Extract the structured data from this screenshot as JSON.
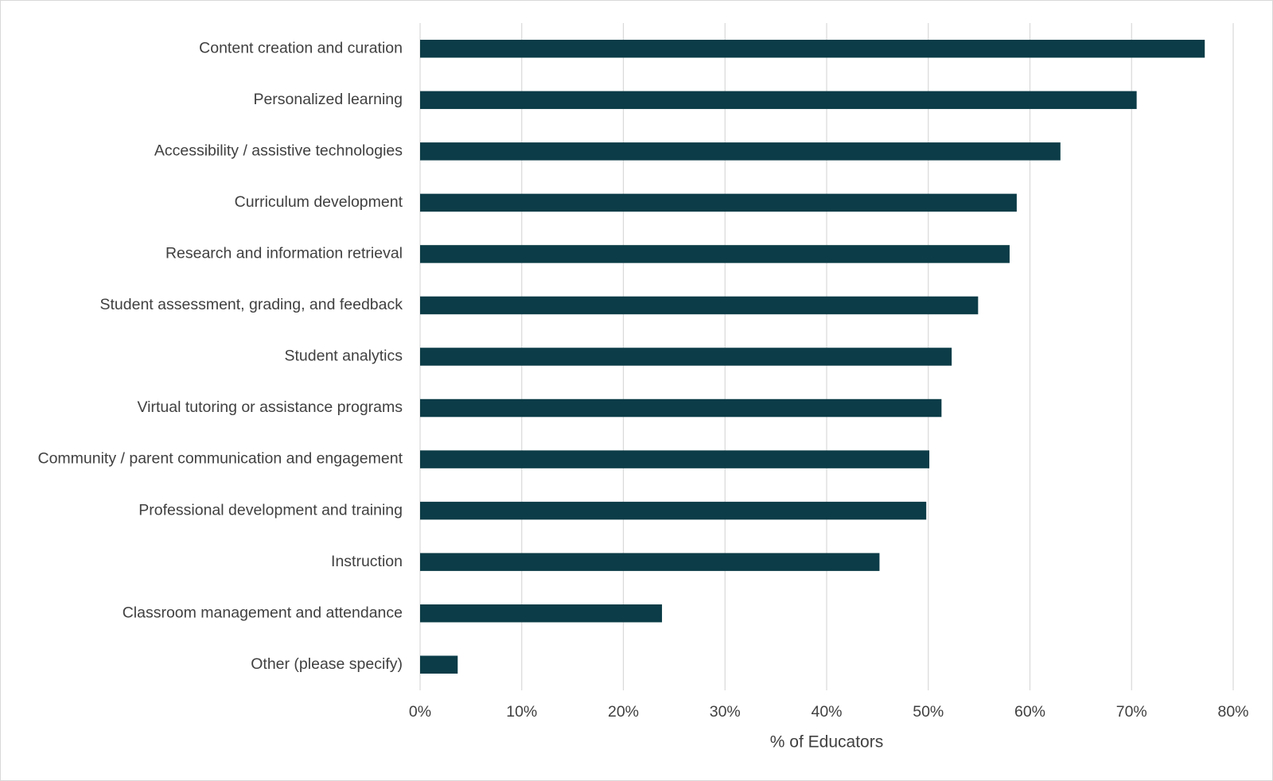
{
  "chart_data": {
    "type": "bar",
    "orientation": "horizontal",
    "x_label": "% of Educators",
    "categories": [
      "Content creation and curation",
      "Personalized learning",
      "Accessibility / assistive technologies",
      "Curriculum development",
      "Research and information retrieval",
      "Student assessment, grading, and feedback",
      "Student analytics",
      "Virtual tutoring or assistance programs",
      "Community / parent communication and engagement",
      "Professional development and training",
      "Instruction",
      "Classroom management and attendance",
      "Other (please specify)"
    ],
    "values": [
      77.2,
      70.5,
      63.0,
      58.7,
      58.0,
      54.9,
      52.3,
      51.3,
      50.1,
      49.8,
      45.2,
      23.8,
      3.7
    ],
    "color": "#0b3c47",
    "xlim": [
      0,
      80
    ],
    "xticks": [
      {
        "value": 0,
        "label": "0%"
      },
      {
        "value": 10,
        "label": "10%"
      },
      {
        "value": 20,
        "label": "20%"
      },
      {
        "value": 30,
        "label": "30%"
      },
      {
        "value": 40,
        "label": "40%"
      },
      {
        "value": 50,
        "label": "50%"
      },
      {
        "value": 60,
        "label": "60%"
      },
      {
        "value": 70,
        "label": "70%"
      },
      {
        "value": 80,
        "label": "80%"
      }
    ],
    "grid": true
  }
}
